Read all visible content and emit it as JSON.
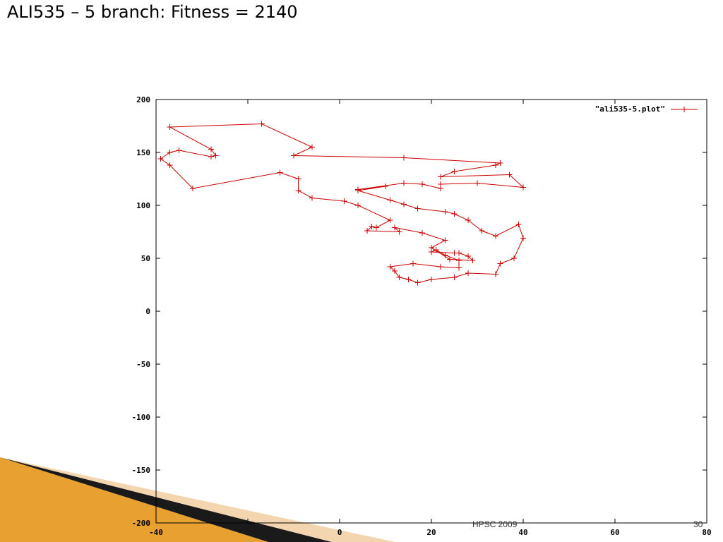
{
  "slide": {
    "title": "ALI535 – 5 branch: Fitness = 2140",
    "footer": "HPSC 2009",
    "page_number": "30"
  },
  "colors": {
    "series": "#cc0000",
    "axis": "#000000",
    "decor_gold": "#e8a030",
    "decor_dark": "#1a1a1a"
  },
  "chart_data": {
    "type": "line",
    "xlim": [
      -40,
      80
    ],
    "ylim": [
      -200,
      200
    ],
    "x_ticks": [
      -40,
      -20,
      0,
      20,
      40,
      60,
      80
    ],
    "y_ticks": [
      200,
      150,
      100,
      50,
      0,
      -50,
      -100,
      -150,
      -200
    ],
    "x_tick_labels": [
      "-40",
      "",
      "0",
      "20",
      "40",
      "60",
      "80"
    ],
    "y_tick_labels": [
      "200",
      "150",
      "100",
      "50",
      "0",
      "-50",
      "-100",
      "-150",
      "-200"
    ],
    "grid": false,
    "legend_position": "top-right",
    "series": [
      {
        "name": "\"ali535-5.plot\"",
        "marker": "+",
        "points": [
          [
            -37,
            174
          ],
          [
            -17,
            177
          ],
          [
            -6,
            155
          ],
          [
            -10,
            147
          ],
          [
            14,
            145
          ],
          [
            35,
            140
          ],
          [
            34,
            138
          ],
          [
            25,
            132
          ],
          [
            22,
            127
          ],
          [
            37,
            129
          ],
          [
            40,
            117
          ],
          [
            30,
            121
          ],
          [
            22,
            120
          ],
          [
            22,
            116
          ],
          [
            18,
            120
          ],
          [
            14,
            121
          ],
          [
            4,
            115
          ],
          [
            10,
            118
          ],
          [
            4,
            114
          ],
          [
            11,
            105
          ],
          [
            14,
            101
          ],
          [
            17,
            97
          ],
          [
            23,
            94
          ],
          [
            25,
            92
          ],
          [
            28,
            86
          ],
          [
            31,
            76
          ],
          [
            34,
            71
          ],
          [
            39,
            82
          ],
          [
            40,
            69
          ],
          [
            38,
            50
          ],
          [
            35,
            45
          ],
          [
            34,
            35
          ],
          [
            28,
            36
          ],
          [
            25,
            32
          ],
          [
            20,
            30
          ],
          [
            17,
            27
          ],
          [
            15,
            30
          ],
          [
            13,
            32
          ],
          [
            12,
            38
          ],
          [
            11,
            42
          ],
          [
            16,
            45
          ],
          [
            22,
            42
          ],
          [
            26,
            41
          ],
          [
            26,
            48
          ],
          [
            23,
            53
          ],
          [
            21,
            58
          ],
          [
            20,
            56
          ],
          [
            25,
            55
          ],
          [
            26,
            55
          ],
          [
            28,
            52
          ],
          [
            29,
            48
          ],
          [
            24,
            49
          ],
          [
            20,
            60
          ],
          [
            23,
            67
          ],
          [
            18,
            74
          ],
          [
            12,
            79
          ],
          [
            13,
            75
          ],
          [
            6,
            76
          ],
          [
            7,
            80
          ],
          [
            8,
            79
          ],
          [
            11,
            86
          ],
          [
            4,
            100
          ],
          [
            1,
            104
          ],
          [
            -6,
            107
          ],
          [
            -9,
            114
          ],
          [
            -9,
            125
          ],
          [
            -13,
            131
          ],
          [
            -32,
            116
          ],
          [
            -37,
            138
          ],
          [
            -39,
            144
          ],
          [
            -37,
            150
          ],
          [
            -35,
            152
          ],
          [
            -28,
            146
          ],
          [
            -27,
            147
          ],
          [
            -28,
            153
          ],
          [
            -37,
            174
          ]
        ]
      }
    ]
  }
}
